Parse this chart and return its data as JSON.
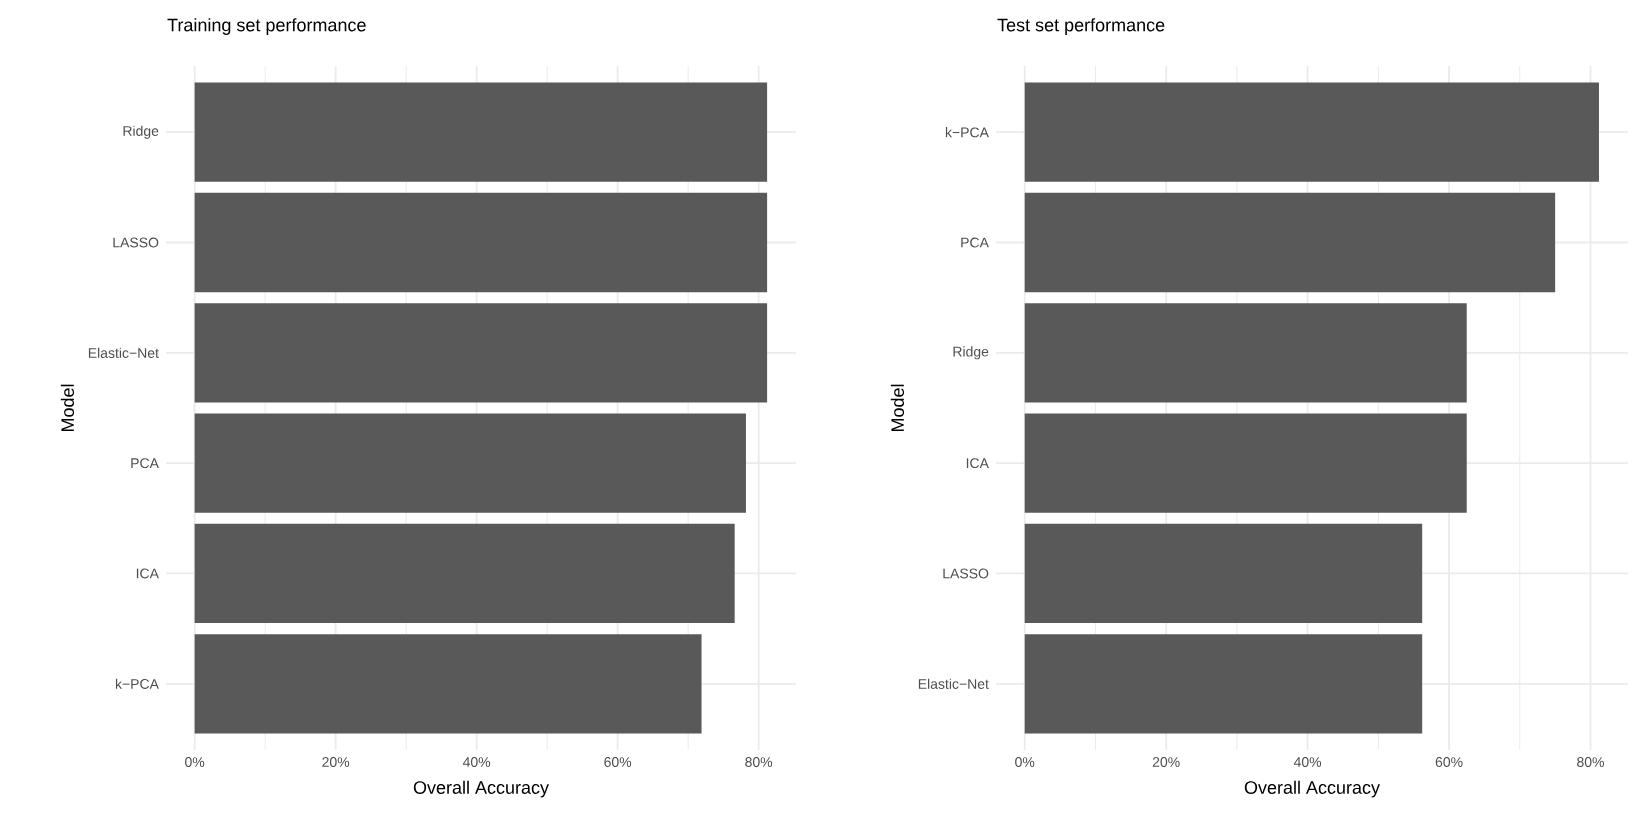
{
  "chart_data": [
    {
      "type": "bar",
      "orientation": "horizontal",
      "title": "Training set performance",
      "xlabel": "Overall Accuracy",
      "ylabel": "Model",
      "categories": [
        "Ridge",
        "LASSO",
        "Elastic−Net",
        "PCA",
        "ICA",
        "k−PCA"
      ],
      "values": [
        81.2,
        81.2,
        81.2,
        78.2,
        76.6,
        71.9
      ],
      "color": "#595959",
      "xlim": [
        -4.06,
        85.3
      ],
      "xticks": [
        {
          "value": 0,
          "label": "0%"
        },
        {
          "value": 20,
          "label": "20%"
        },
        {
          "value": 40,
          "label": "40%"
        },
        {
          "value": 60,
          "label": "60%"
        },
        {
          "value": 80,
          "label": "80%"
        }
      ],
      "grid": true
    },
    {
      "type": "bar",
      "orientation": "horizontal",
      "title": "Test set performance",
      "xlabel": "Overall Accuracy",
      "ylabel": "Model",
      "categories": [
        "k−PCA",
        "PCA",
        "Ridge",
        "ICA",
        "LASSO",
        "Elastic−Net"
      ],
      "values": [
        81.2,
        75.0,
        62.5,
        62.5,
        56.2,
        56.2
      ],
      "color": "#595959",
      "xlim": [
        -4.06,
        85.3
      ],
      "xticks": [
        {
          "value": 0,
          "label": "0%"
        },
        {
          "value": 20,
          "label": "20%"
        },
        {
          "value": 40,
          "label": "40%"
        },
        {
          "value": 60,
          "label": "60%"
        },
        {
          "value": 80,
          "label": "80%"
        }
      ],
      "grid": true
    }
  ]
}
